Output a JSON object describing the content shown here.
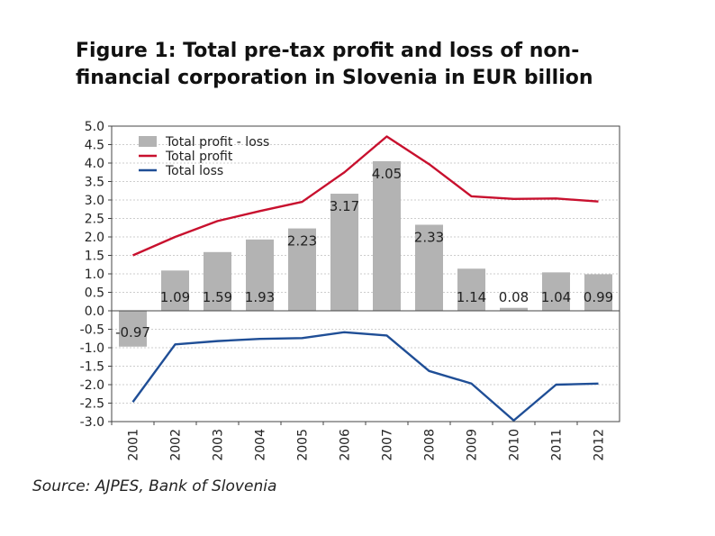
{
  "title": "Figure 1: Total pre-tax profit and loss of non-financial corporation in Slovenia in EUR billion",
  "source": "Source: AJPES, Bank of Slovenia",
  "chart_data": {
    "type": "bar",
    "title": "Figure 1: Total pre-tax profit and loss of non-financial corporation in Slovenia in EUR billion",
    "xlabel": "",
    "ylabel": "",
    "ylim": [
      -3.0,
      5.0
    ],
    "grid": true,
    "legend_position": "top-left",
    "categories": [
      "2001",
      "2002",
      "2003",
      "2004",
      "2005",
      "2006",
      "2007",
      "2008",
      "2009",
      "2010",
      "2011",
      "2012"
    ],
    "y_ticks": [
      "5.0",
      "4.5",
      "4.0",
      "3.5",
      "3.0",
      "2.5",
      "2.0",
      "1.5",
      "1.0",
      "0.5",
      "0.0",
      "-0.5",
      "-1.0",
      "-1.5",
      "-2.0",
      "-2.5",
      "-3.0"
    ],
    "series": [
      {
        "name": "Total profit - loss",
        "kind": "bar",
        "color": "#b3b3b3",
        "values": [
          -0.97,
          1.09,
          1.59,
          1.93,
          2.23,
          3.17,
          4.05,
          2.33,
          1.14,
          0.08,
          1.04,
          0.99
        ],
        "labels": [
          "-0.97",
          "1.09",
          "1.59",
          "1.93",
          "2.23",
          "3.17",
          "4.05",
          "2.33",
          "1.14",
          "0.08",
          "1.04",
          "0.99"
        ]
      },
      {
        "name": "Total profit",
        "kind": "line",
        "color": "#c8102e",
        "values": [
          1.5,
          2.0,
          2.43,
          2.7,
          2.95,
          3.75,
          4.72,
          3.97,
          3.1,
          3.03,
          3.04,
          2.96
        ]
      },
      {
        "name": "Total loss",
        "kind": "line",
        "color": "#1f4e96",
        "values": [
          -2.47,
          -0.91,
          -0.82,
          -0.76,
          -0.74,
          -0.58,
          -0.67,
          -1.63,
          -1.97,
          -2.97,
          -2.0,
          -1.97
        ]
      }
    ]
  }
}
